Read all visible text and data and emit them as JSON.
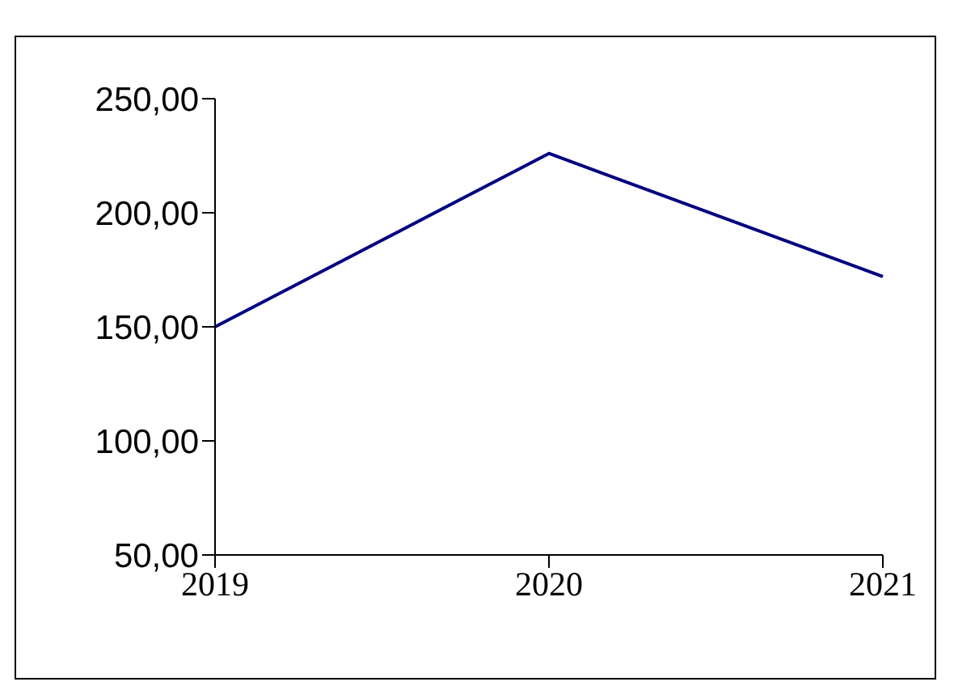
{
  "chart_data": {
    "type": "line",
    "categories": [
      "2019",
      "2020",
      "2021"
    ],
    "series": [
      {
        "color": "#000080",
        "values": [
          150,
          226,
          172
        ]
      }
    ],
    "ylim": [
      50,
      250
    ],
    "yticks": [
      {
        "value": 50,
        "label": "50,00"
      },
      {
        "value": 100,
        "label": "100,00"
      },
      {
        "value": 150,
        "label": "150,00"
      },
      {
        "value": 200,
        "label": "200,00"
      },
      {
        "value": 250,
        "label": "250,00"
      }
    ],
    "grid": false,
    "legend": false,
    "marker": "none",
    "line_style": "solid"
  }
}
